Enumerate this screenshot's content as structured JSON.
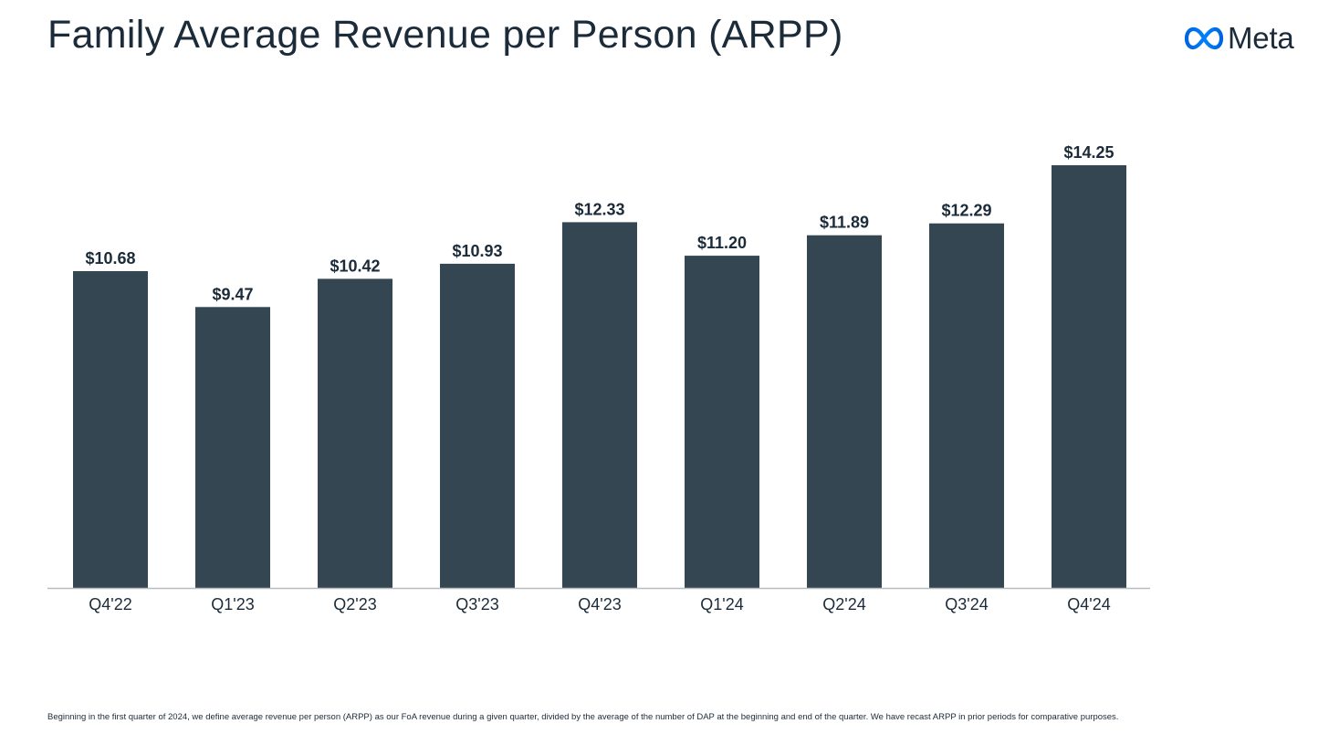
{
  "slide": {
    "title": "Family Average Revenue per Person (ARPP)",
    "logo_text": "Meta",
    "logo_icon": "meta-infinity-icon",
    "footnote": "Beginning in the first quarter of 2024, we define average revenue per person (ARPP) as our FoA revenue during a given quarter, divided by the average of the number of DAP at the beginning and end of the quarter. We have recast ARPP in prior periods for comparative purposes."
  },
  "colors": {
    "bar": "#344651",
    "text": "#1c2b39",
    "axis": "#b8bcc0"
  },
  "chart_data": {
    "type": "bar",
    "title": "Family Average Revenue per Person (ARPP)",
    "xlabel": "",
    "ylabel": "",
    "categories": [
      "Q4'22",
      "Q1'23",
      "Q2'23",
      "Q3'23",
      "Q4'23",
      "Q1'24",
      "Q2'24",
      "Q3'24",
      "Q4'24"
    ],
    "values": [
      10.68,
      9.47,
      10.42,
      10.93,
      12.33,
      11.2,
      11.89,
      12.29,
      14.25
    ],
    "data_labels": [
      "$10.68",
      "$9.47",
      "$10.42",
      "$10.93",
      "$12.33",
      "$11.20",
      "$11.89",
      "$12.29",
      "$14.25"
    ],
    "tick_labels": [
      "Q4'22",
      "Q1'23",
      "Q2'23",
      "Q3'23",
      "Q4'23",
      "Q1'24",
      "Q2'24",
      "Q3'24",
      "Q4'24"
    ],
    "ylim": [
      0,
      14.25
    ],
    "grid": false,
    "legend": "none"
  }
}
